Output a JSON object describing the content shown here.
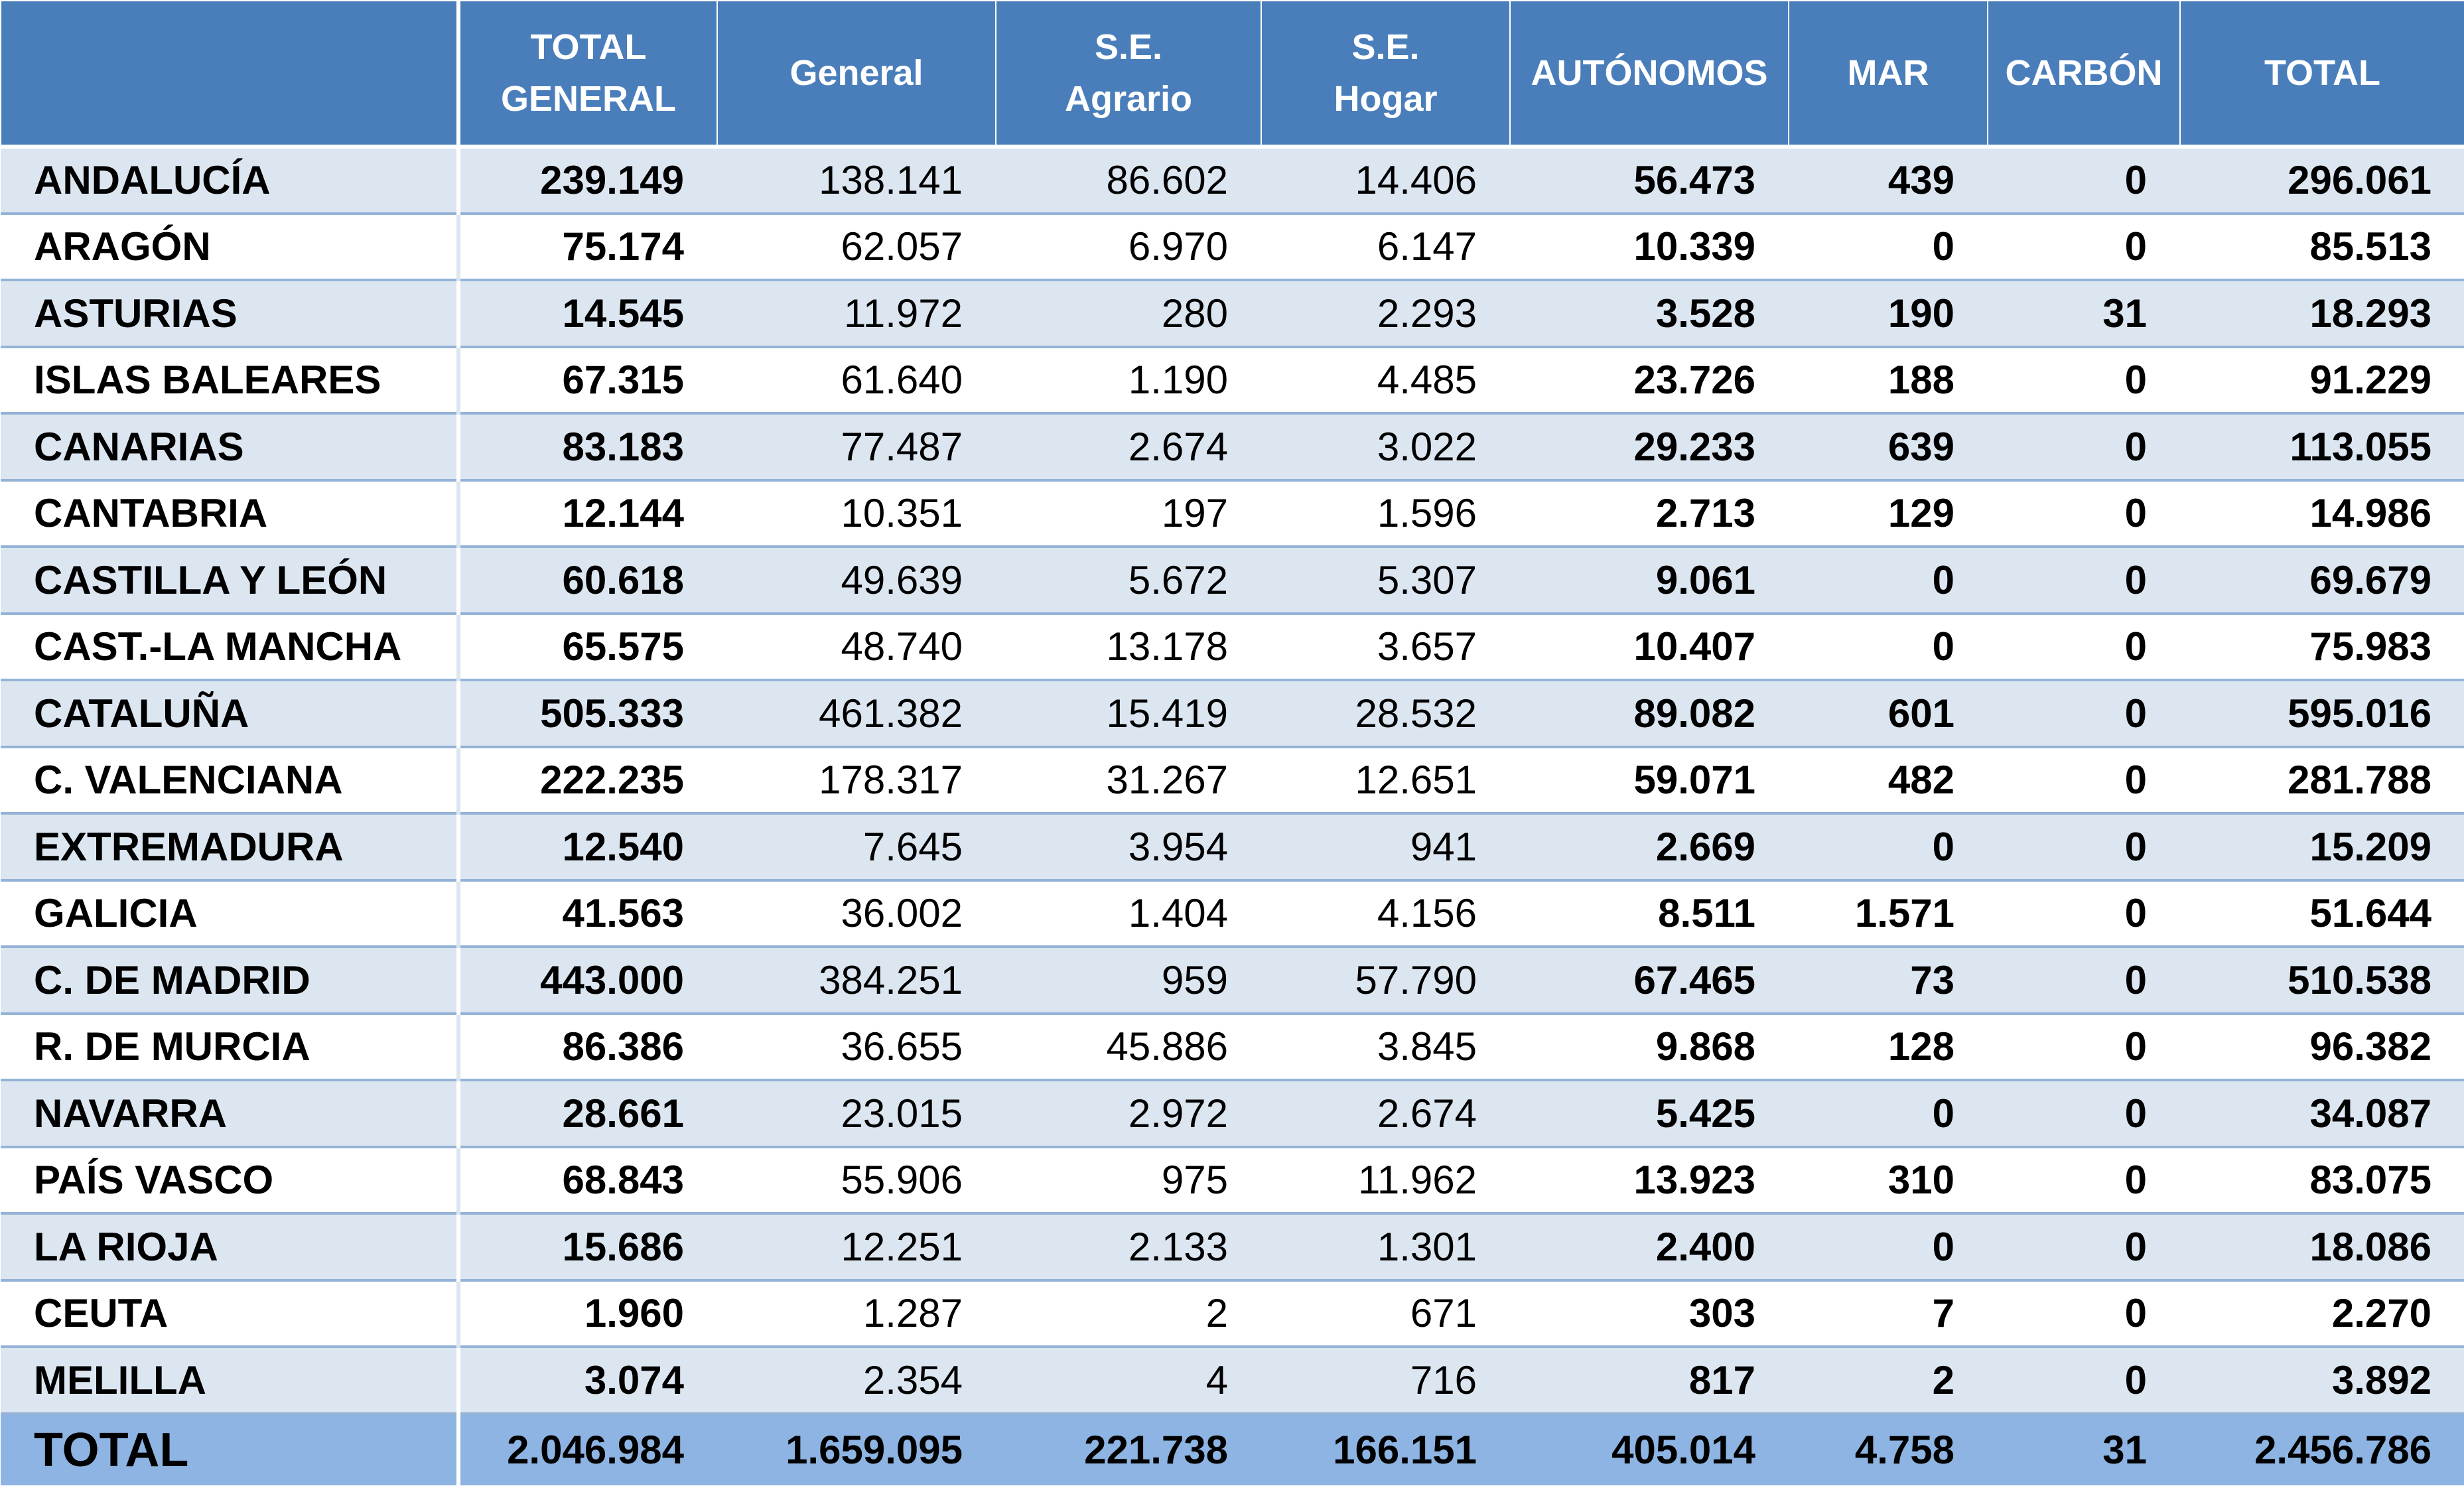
{
  "header": {
    "blank": "",
    "columns": [
      [
        "TOTAL",
        "GENERAL"
      ],
      [
        "General"
      ],
      [
        "S.E.",
        "Agrario"
      ],
      [
        "S.E.",
        "Hogar"
      ],
      [
        "AUTÓNOMOS"
      ],
      [
        "MAR"
      ],
      [
        "CARBÓN"
      ],
      [
        "TOTAL"
      ]
    ]
  },
  "rows": [
    {
      "region": "ANDALUCÍA",
      "values": [
        "239.149",
        "138.141",
        "86.602",
        "14.406",
        "56.473",
        "439",
        "0",
        "296.061"
      ]
    },
    {
      "region": "ARAGÓN",
      "values": [
        "75.174",
        "62.057",
        "6.970",
        "6.147",
        "10.339",
        "0",
        "0",
        "85.513"
      ]
    },
    {
      "region": "ASTURIAS",
      "values": [
        "14.545",
        "11.972",
        "280",
        "2.293",
        "3.528",
        "190",
        "31",
        "18.293"
      ]
    },
    {
      "region": "ISLAS BALEARES",
      "values": [
        "67.315",
        "61.640",
        "1.190",
        "4.485",
        "23.726",
        "188",
        "0",
        "91.229"
      ]
    },
    {
      "region": "CANARIAS",
      "values": [
        "83.183",
        "77.487",
        "2.674",
        "3.022",
        "29.233",
        "639",
        "0",
        "113.055"
      ]
    },
    {
      "region": "CANTABRIA",
      "values": [
        "12.144",
        "10.351",
        "197",
        "1.596",
        "2.713",
        "129",
        "0",
        "14.986"
      ]
    },
    {
      "region": "CASTILLA Y LEÓN",
      "values": [
        "60.618",
        "49.639",
        "5.672",
        "5.307",
        "9.061",
        "0",
        "0",
        "69.679"
      ]
    },
    {
      "region": "CAST.-LA MANCHA",
      "values": [
        "65.575",
        "48.740",
        "13.178",
        "3.657",
        "10.407",
        "0",
        "0",
        "75.983"
      ]
    },
    {
      "region": "CATALUÑA",
      "values": [
        "505.333",
        "461.382",
        "15.419",
        "28.532",
        "89.082",
        "601",
        "0",
        "595.016"
      ]
    },
    {
      "region": "C. VALENCIANA",
      "values": [
        "222.235",
        "178.317",
        "31.267",
        "12.651",
        "59.071",
        "482",
        "0",
        "281.788"
      ]
    },
    {
      "region": "EXTREMADURA",
      "values": [
        "12.540",
        "7.645",
        "3.954",
        "941",
        "2.669",
        "0",
        "0",
        "15.209"
      ]
    },
    {
      "region": "GALICIA",
      "values": [
        "41.563",
        "36.002",
        "1.404",
        "4.156",
        "8.511",
        "1.571",
        "0",
        "51.644"
      ]
    },
    {
      "region": "C. DE MADRID",
      "values": [
        "443.000",
        "384.251",
        "959",
        "57.790",
        "67.465",
        "73",
        "0",
        "510.538"
      ]
    },
    {
      "region": "R. DE MURCIA",
      "values": [
        "86.386",
        "36.655",
        "45.886",
        "3.845",
        "9.868",
        "128",
        "0",
        "96.382"
      ]
    },
    {
      "region": "NAVARRA",
      "values": [
        "28.661",
        "23.015",
        "2.972",
        "2.674",
        "5.425",
        "0",
        "0",
        "34.087"
      ]
    },
    {
      "region": "PAÍS VASCO",
      "values": [
        "68.843",
        "55.906",
        "975",
        "11.962",
        "13.923",
        "310",
        "0",
        "83.075"
      ]
    },
    {
      "region": "LA RIOJA",
      "values": [
        "15.686",
        "12.251",
        "2.133",
        "1.301",
        "2.400",
        "0",
        "0",
        "18.086"
      ]
    },
    {
      "region": "CEUTA",
      "values": [
        "1.960",
        "1.287",
        "2",
        "671",
        "303",
        "7",
        "0",
        "2.270"
      ]
    },
    {
      "region": "MELILLA",
      "values": [
        "3.074",
        "2.354",
        "4",
        "716",
        "817",
        "2",
        "0",
        "3.892"
      ]
    }
  ],
  "total": {
    "label": "TOTAL",
    "values": [
      "2.046.984",
      "1.659.095",
      "221.738",
      "166.151",
      "405.014",
      "4.758",
      "31",
      "2.456.786"
    ]
  },
  "colors": {
    "header_bg": "#4a7ebb",
    "band_bg": "#dce6f1",
    "total_bg": "#8db4e2",
    "row_border": "#95b3d7"
  }
}
